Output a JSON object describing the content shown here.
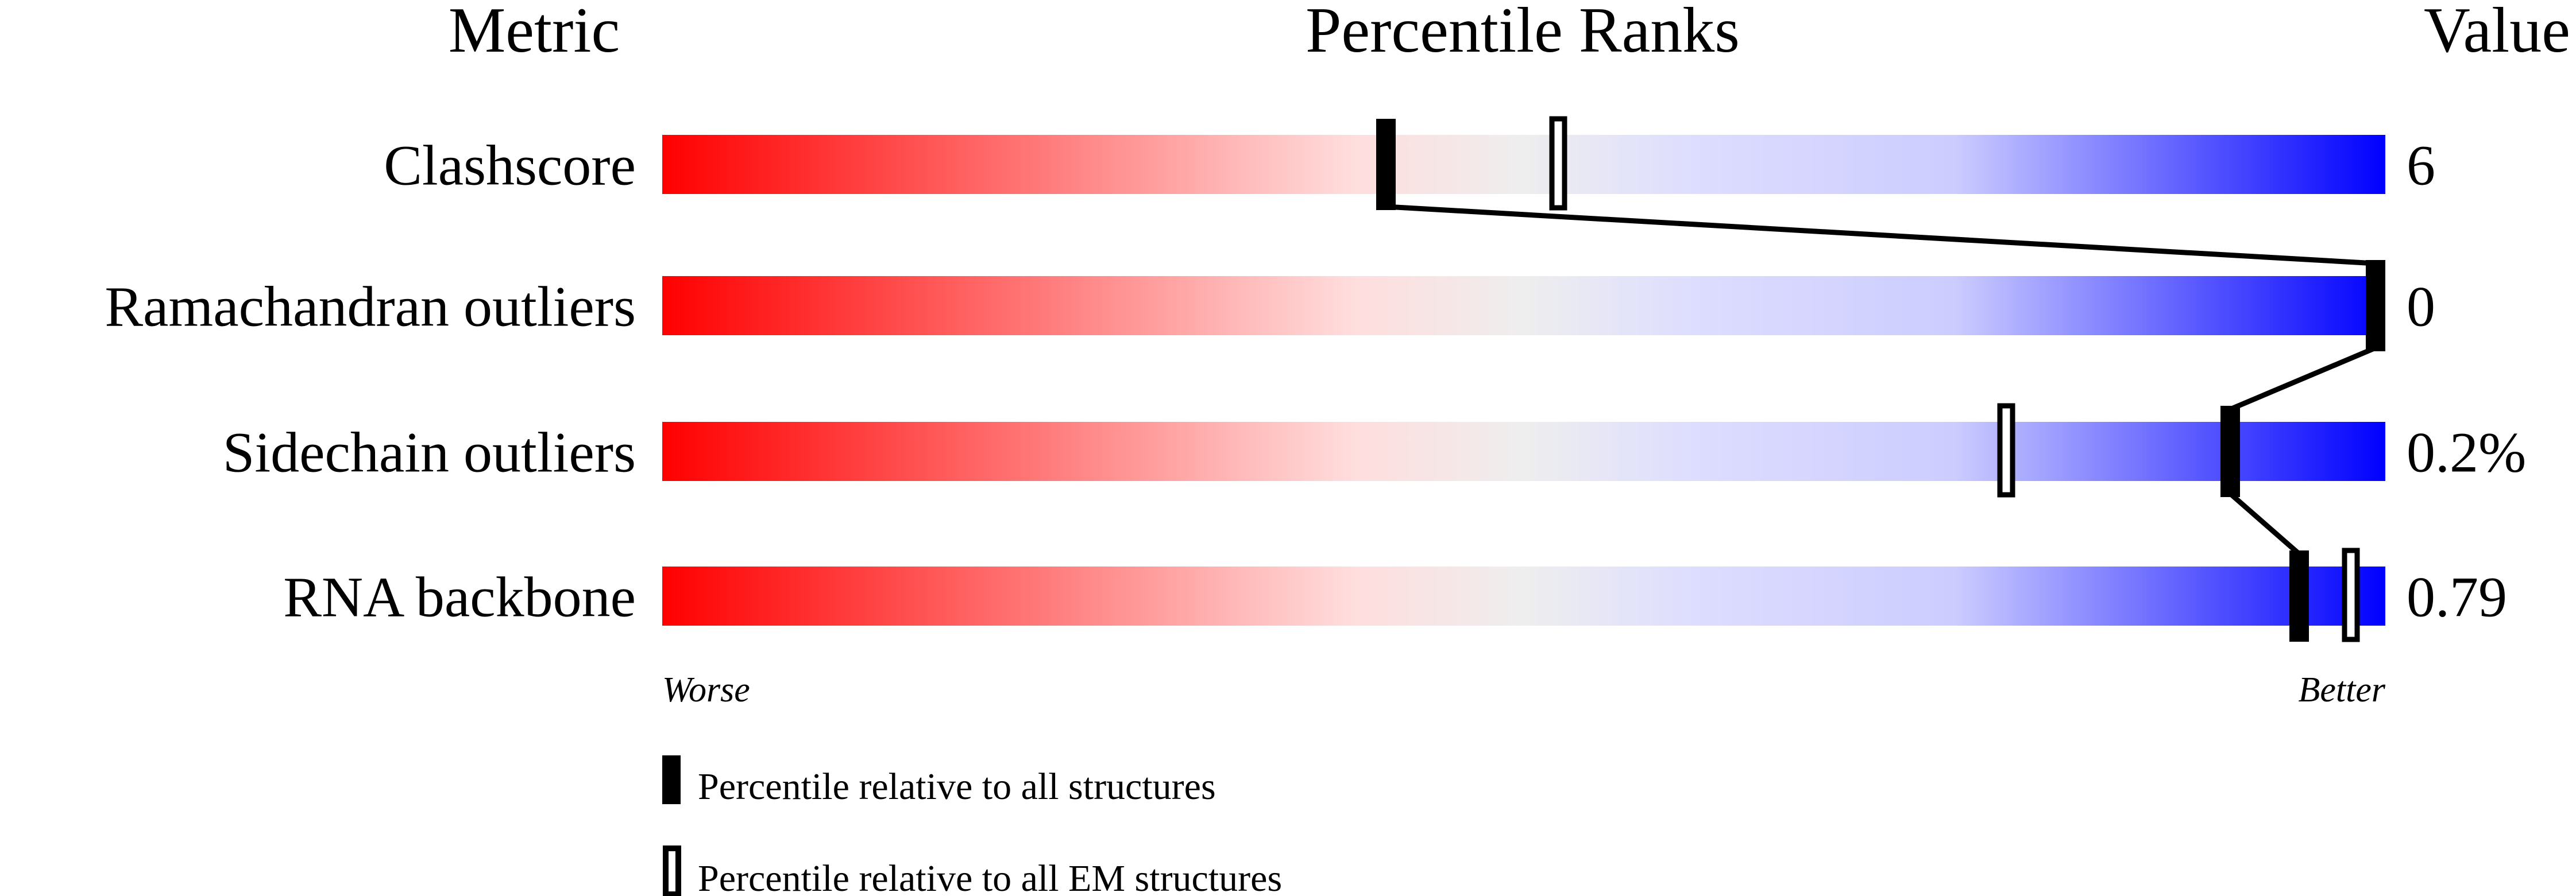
{
  "chart_data": {
    "type": "bar",
    "headers": {
      "metric": "Metric",
      "ranks": "Percentile Ranks",
      "value": "Value"
    },
    "xlim": [
      0,
      100
    ],
    "gradient_colors": [
      "#ff0000",
      "#ffdddd",
      "#eeeeee",
      "#ddddff",
      "#0000ff"
    ],
    "metrics": [
      {
        "label": "Clashscore",
        "value": "6",
        "percentile_all": 42,
        "percentile_em": 52
      },
      {
        "label": "Ramachandran outliers",
        "value": "0",
        "percentile_all": 100,
        "percentile_em": null
      },
      {
        "label": "Sidechain outliers",
        "value": "0.2%",
        "percentile_all": 91,
        "percentile_em": 78
      },
      {
        "label": "RNA backbone",
        "value": "0.79",
        "percentile_all": 95,
        "percentile_em": 98
      }
    ],
    "axis": {
      "worse": "Worse",
      "better": "Better"
    },
    "legend": {
      "all": "Percentile relative to all structures",
      "em": "Percentile relative to all EM structures"
    }
  }
}
